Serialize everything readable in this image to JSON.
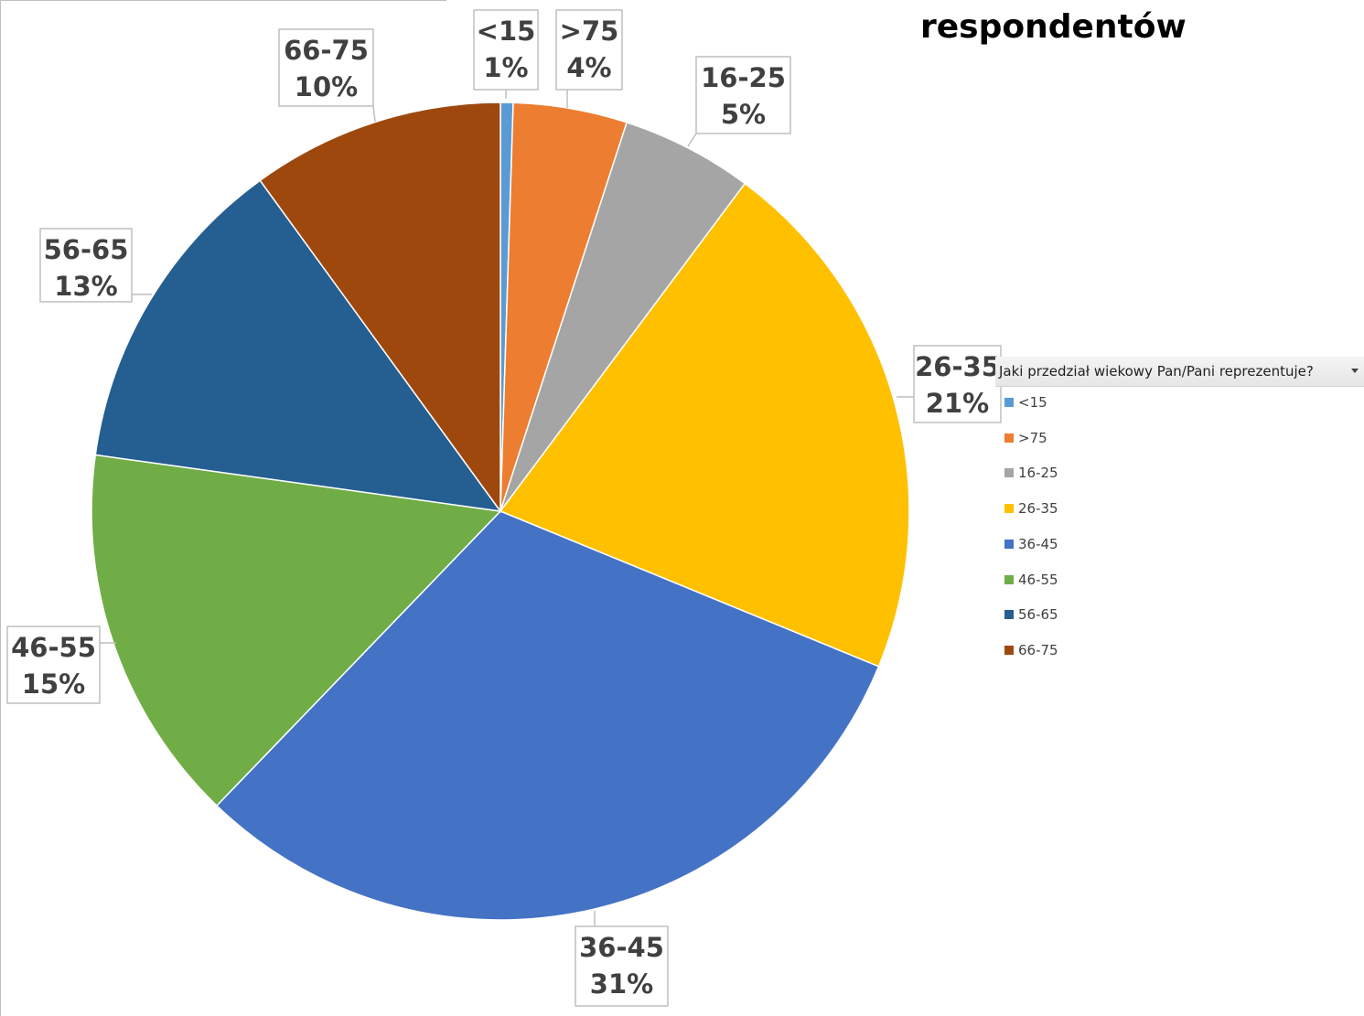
{
  "chart_data": {
    "type": "pie",
    "title": "respondentów",
    "legend_title": "Jaki przedział wiekowy Pan/Pani reprezentuje?",
    "legend_position": "right",
    "categories": [
      "<15",
      ">75",
      "16-25",
      "26-35",
      "36-45",
      "46-55",
      "56-65",
      "66-75"
    ],
    "values": [
      0.5,
      4.5,
      5.2,
      21.0,
      31.0,
      15.0,
      12.8,
      10.0
    ],
    "labels": [
      "1%",
      "4%",
      "5%",
      "21%",
      "31%",
      "15%",
      "13%",
      "10%"
    ],
    "colors": [
      "#5B9BD5",
      "#ED7D31",
      "#A5A5A5",
      "#FFC000",
      "#4472C4",
      "#70AD47",
      "#255E91",
      "#9E480E"
    ]
  }
}
